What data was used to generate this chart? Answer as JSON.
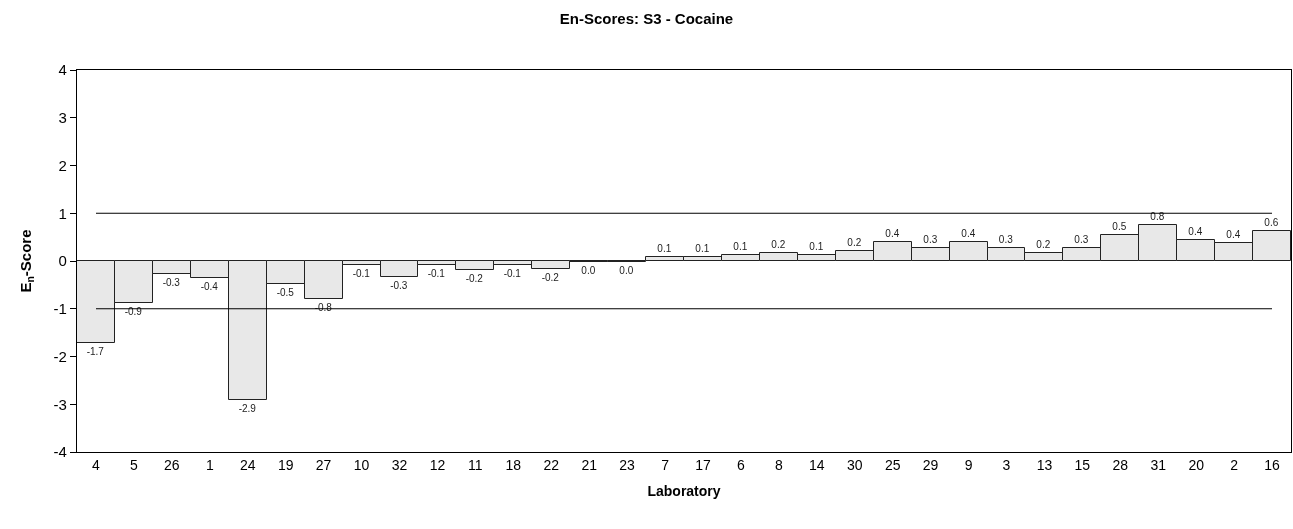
{
  "chart_data": {
    "type": "bar",
    "title": "En-Scores: S3 - Cocaine",
    "xlabel": "Laboratory",
    "ylabel": "E$_{n}$-Score",
    "categories": [
      "4",
      "5",
      "26",
      "1",
      "24",
      "19",
      "27",
      "10",
      "32",
      "12",
      "11",
      "18",
      "22",
      "21",
      "23",
      "7",
      "17",
      "6",
      "8",
      "14",
      "30",
      "25",
      "29",
      "9",
      "3",
      "13",
      "15",
      "28",
      "31",
      "20",
      "2",
      "16"
    ],
    "values": [
      -1.71,
      -0.87,
      -0.27,
      -0.36,
      -2.91,
      -0.49,
      -0.79,
      -0.08,
      -0.33,
      -0.08,
      -0.19,
      -0.08,
      -0.17,
      -0.03,
      -0.03,
      0.08,
      0.08,
      0.13,
      0.17,
      0.13,
      0.22,
      0.4,
      0.27,
      0.4,
      0.27,
      0.16,
      0.27,
      0.54,
      0.76,
      0.43,
      0.37,
      0.62
    ],
    "value_labels": [
      "-1.7",
      "-0.9",
      "-0.3",
      "-0.4",
      "-2.9",
      "-0.5",
      "-0.8",
      "-0.1",
      "-0.3",
      "-0.1",
      "-0.2",
      "-0.1",
      "-0.2",
      "0.0",
      "0.0",
      "0.1",
      "0.1",
      "0.1",
      "0.2",
      "0.1",
      "0.2",
      "0.4",
      "0.3",
      "0.4",
      "0.3",
      "0.2",
      "0.3",
      "0.5",
      "0.8",
      "0.4",
      "0.4",
      "0.6"
    ],
    "color": "#e8e8e8",
    "ylim": [
      -4,
      4
    ],
    "yticks": [
      -4,
      -3,
      -2,
      -1,
      0,
      1,
      2,
      3,
      4
    ],
    "ref_lines": [
      {
        "axis": "y",
        "value": 1,
        "color": "#000000"
      },
      {
        "axis": "y",
        "value": -1,
        "color": "#000000"
      }
    ]
  }
}
